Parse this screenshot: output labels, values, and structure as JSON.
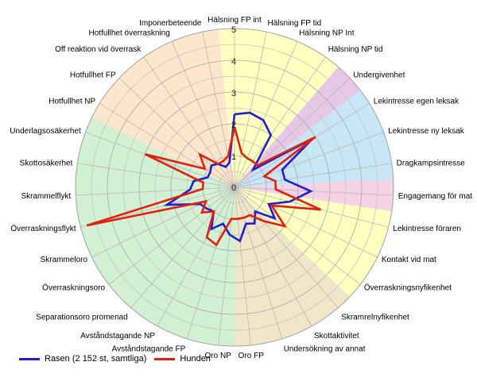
{
  "chart_data": {
    "type": "radar",
    "title": "",
    "r_range": [
      0,
      5
    ],
    "r_ticks": [
      "1",
      "2",
      "3",
      "4",
      "5"
    ],
    "categories": [
      "Hälsning FP int",
      "Hälsning FP tid",
      "Hälsning NP Int",
      "Hälsning NP tid",
      "Undergivenhet",
      "Lekintresse egen leksak",
      "Lekintresse ny leksak",
      "Dragkampsintresse",
      "Engagemang för mat",
      "Lekintresse föraren",
      "Kontakt vid mat",
      "Överraskningsnyfikenhet",
      "Skramrelnyfikenhet",
      "Skottaktivitet",
      "Undersökning av annat",
      "Oro FP",
      "Oro NP",
      "Avståndstagande FP",
      "Avståndstagande NP",
      "Separationsoro promenad",
      "Överraskningsoro",
      "Skrammeloro",
      "Överraskningsflykt",
      "Skrammelflykt",
      "Skottosäkerhet",
      "Underlagsosäkerhet",
      "Hotfullhet NP",
      "Hotfullhet FP",
      "Off reaktion vid överrask",
      "Hotfullhet överraskning",
      "Imponerbeteende"
    ],
    "sectors": [
      {
        "from": 0,
        "to": 3,
        "color": "#ffffc0"
      },
      {
        "from": 4,
        "to": 4,
        "color": "#e6c8e6"
      },
      {
        "from": 5,
        "to": 7,
        "color": "#c8e6f5"
      },
      {
        "from": 8,
        "to": 8,
        "color": "#f5d2e6"
      },
      {
        "from": 9,
        "to": 11,
        "color": "#ffffc0"
      },
      {
        "from": 12,
        "to": 15,
        "color": "#f0e6c8"
      },
      {
        "from": 16,
        "to": 25,
        "color": "#d2f0d2"
      },
      {
        "from": 26,
        "to": 30,
        "color": "#fde6cc"
      }
    ],
    "series": [
      {
        "name": "Rasen (2 152 st, samtliga)",
        "color": "#1f1fcc",
        "values": [
          2.3,
          2.4,
          2.3,
          2.0,
          0.8,
          2.9,
          1.6,
          1.6,
          2.4,
          1.8,
          1.2,
          1.6,
          1.0,
          1.3,
          1.2,
          1.7,
          1.5,
          1.2,
          1.5,
          1.0,
          1.1,
          1.2,
          2.2,
          1.4,
          1.3,
          0.9,
          0.9,
          1.0,
          0.9,
          0.7,
          0.8
        ]
      },
      {
        "name": "Hunden",
        "color": "#e02010",
        "values": [
          1.9,
          1.1,
          1.0,
          1.0,
          1.0,
          3.0,
          1.0,
          1.3,
          1.3,
          2.8,
          1.3,
          2.0,
          1.4,
          1.0,
          1.0,
          1.0,
          1.0,
          1.9,
          1.8,
          1.0,
          1.3,
          1.0,
          4.8,
          1.0,
          1.0,
          3.0,
          1.1,
          1.5,
          0.9,
          0.9,
          1.0
        ]
      }
    ],
    "legend_position": "bottom-left",
    "grid": true
  }
}
